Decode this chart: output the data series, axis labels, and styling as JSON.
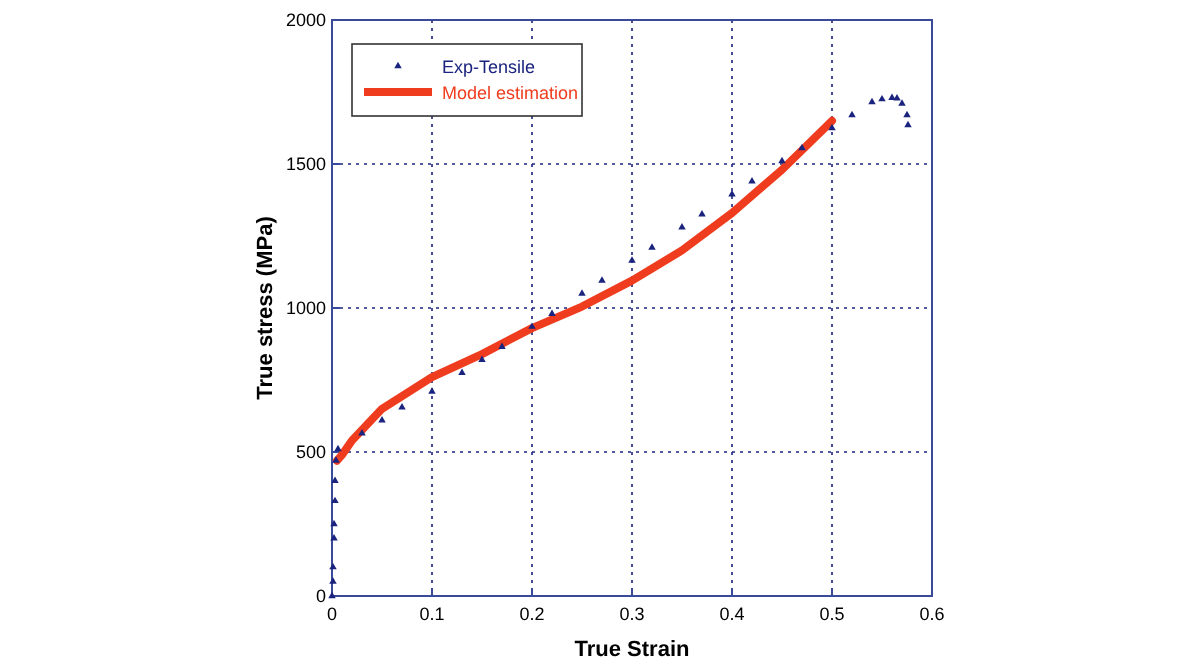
{
  "chart_data": {
    "type": "line",
    "xlabel": "True Strain",
    "ylabel": "True stress (MPa)",
    "xlim": [
      0,
      0.6
    ],
    "xticks": [
      0,
      0.1,
      0.2,
      0.3,
      0.4,
      0.5,
      0.6
    ],
    "ylim": [
      0,
      2000
    ],
    "yticks": [
      0,
      500,
      1000,
      1500,
      2000
    ],
    "grid": true,
    "legend": "top left",
    "series": [
      {
        "name": "Exp-Tensile",
        "type": "scatter",
        "marker": "triangle",
        "color": "#1a237e",
        "x": [
          0,
          0.001,
          0.001,
          0.002,
          0.002,
          0.003,
          0.003,
          0.004,
          0.006,
          0.03,
          0.05,
          0.07,
          0.1,
          0.13,
          0.15,
          0.17,
          0.2,
          0.22,
          0.25,
          0.27,
          0.3,
          0.32,
          0.35,
          0.37,
          0.4,
          0.42,
          0.45,
          0.47,
          0.5,
          0.52,
          0.54,
          0.55,
          0.56,
          0.565,
          0.57,
          0.575,
          0.576
        ],
        "values": [
          0,
          50,
          100,
          200,
          250,
          330,
          400,
          470,
          510,
          565,
          610,
          655,
          710,
          775,
          820,
          865,
          935,
          980,
          1050,
          1095,
          1165,
          1210,
          1280,
          1325,
          1395,
          1440,
          1510,
          1555,
          1625,
          1670,
          1715,
          1725,
          1730,
          1728,
          1710,
          1670,
          1635
        ]
      },
      {
        "name": "Model estimation",
        "marker": "none",
        "line_style": "solid",
        "color": "#f03c1e",
        "x": [
          0.005,
          0.01,
          0.02,
          0.05,
          0.1,
          0.15,
          0.2,
          0.25,
          0.3,
          0.35,
          0.4,
          0.45,
          0.5
        ],
        "values": [
          470,
          490,
          540,
          650,
          760,
          840,
          930,
          1005,
          1095,
          1200,
          1330,
          1480,
          1650
        ]
      }
    ]
  }
}
